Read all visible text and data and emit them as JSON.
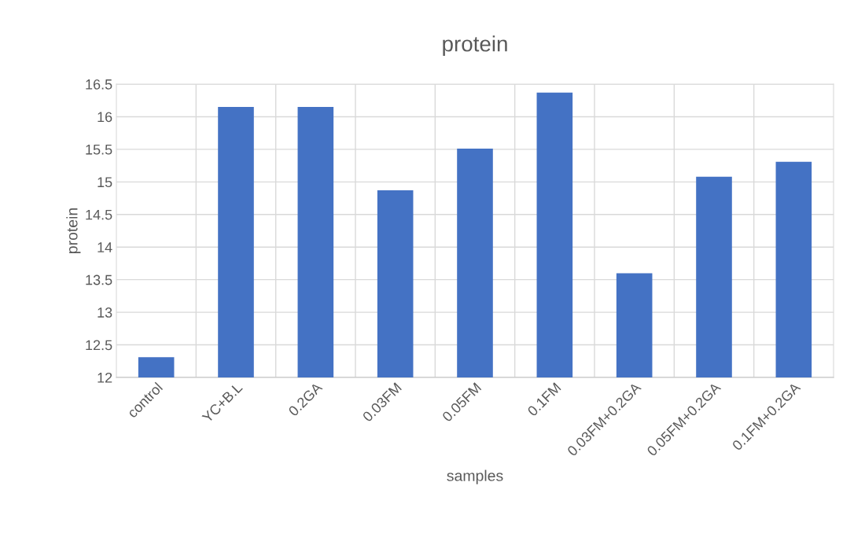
{
  "chart_data": {
    "type": "bar",
    "title": "protein",
    "xlabel": "samples",
    "ylabel": "protein",
    "categories": [
      "control",
      "YC+B.L",
      "0.2GA",
      "0.03FM",
      "0.05FM",
      "0.1FM",
      "0.03FM+0.2GA",
      "0.05FM+0.2GA",
      "0.1FM+0.2GA"
    ],
    "values": [
      12.31,
      16.15,
      16.15,
      14.87,
      15.51,
      16.37,
      13.6,
      15.08,
      15.31
    ],
    "color": "#4472c4",
    "ylim": [
      12,
      16.5
    ],
    "yticks": [
      12,
      12.5,
      13,
      13.5,
      14,
      14.5,
      15,
      15.5,
      16,
      16.5
    ],
    "grid": true
  }
}
